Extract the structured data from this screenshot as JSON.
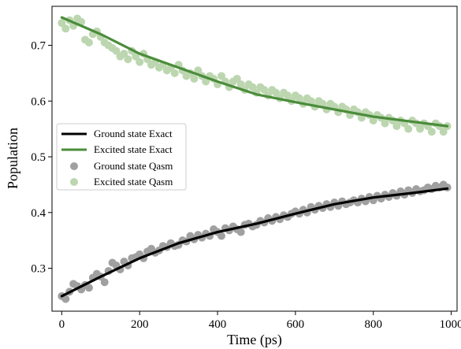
{
  "chart_data": {
    "type": "line",
    "xlabel": "Time (ps)",
    "ylabel": "Population",
    "xlim": [
      -25,
      1015
    ],
    "ylim": [
      0.223,
      0.77
    ],
    "xticks": [
      0,
      200,
      400,
      600,
      800,
      1000
    ],
    "yticks": [
      0.3,
      0.4,
      0.5,
      0.6,
      0.7
    ],
    "legend_position": "center-left",
    "colors": {
      "ground_exact": "#000000",
      "excited_exact": "#4a8c3a",
      "ground_qasm": "#a0a0a0",
      "excited_qasm": "#bcd6b0"
    },
    "series": [
      {
        "name": "Ground state Exact",
        "kind": "line",
        "x": [
          0,
          100,
          200,
          300,
          400,
          500,
          600,
          700,
          800,
          900,
          990
        ],
        "y": [
          0.25,
          0.285,
          0.318,
          0.345,
          0.365,
          0.38,
          0.398,
          0.415,
          0.427,
          0.435,
          0.443
        ]
      },
      {
        "name": "Excited state Exact",
        "kind": "line",
        "x": [
          0,
          100,
          200,
          300,
          400,
          500,
          600,
          700,
          800,
          900,
          990
        ],
        "y": [
          0.75,
          0.72,
          0.685,
          0.66,
          0.635,
          0.612,
          0.598,
          0.585,
          0.572,
          0.563,
          0.555
        ]
      },
      {
        "name": "Ground state Qasm",
        "kind": "scatter",
        "x": [
          0,
          10,
          20,
          30,
          40,
          50,
          60,
          70,
          80,
          90,
          100,
          110,
          120,
          130,
          140,
          150,
          160,
          170,
          180,
          190,
          200,
          210,
          220,
          230,
          240,
          250,
          260,
          270,
          280,
          290,
          300,
          310,
          320,
          330,
          340,
          350,
          360,
          370,
          380,
          390,
          400,
          410,
          420,
          430,
          440,
          450,
          460,
          470,
          480,
          490,
          500,
          510,
          520,
          530,
          540,
          550,
          560,
          570,
          580,
          590,
          600,
          610,
          620,
          630,
          640,
          650,
          660,
          670,
          680,
          690,
          700,
          710,
          720,
          730,
          740,
          750,
          760,
          770,
          780,
          790,
          800,
          810,
          820,
          830,
          840,
          850,
          860,
          870,
          880,
          890,
          900,
          910,
          920,
          930,
          940,
          950,
          960,
          970,
          980,
          990
        ],
        "y": [
          0.25,
          0.245,
          0.258,
          0.272,
          0.268,
          0.262,
          0.27,
          0.265,
          0.283,
          0.29,
          0.285,
          0.275,
          0.295,
          0.31,
          0.305,
          0.298,
          0.312,
          0.305,
          0.318,
          0.32,
          0.325,
          0.318,
          0.33,
          0.335,
          0.328,
          0.332,
          0.34,
          0.338,
          0.345,
          0.34,
          0.342,
          0.35,
          0.348,
          0.358,
          0.352,
          0.36,
          0.355,
          0.362,
          0.358,
          0.37,
          0.365,
          0.358,
          0.372,
          0.368,
          0.375,
          0.37,
          0.365,
          0.378,
          0.38,
          0.375,
          0.378,
          0.385,
          0.382,
          0.39,
          0.385,
          0.392,
          0.388,
          0.395,
          0.392,
          0.398,
          0.402,
          0.398,
          0.405,
          0.4,
          0.41,
          0.405,
          0.412,
          0.408,
          0.415,
          0.41,
          0.418,
          0.412,
          0.42,
          0.415,
          0.418,
          0.422,
          0.418,
          0.425,
          0.42,
          0.428,
          0.422,
          0.43,
          0.425,
          0.432,
          0.428,
          0.435,
          0.43,
          0.438,
          0.432,
          0.44,
          0.435,
          0.442,
          0.438,
          0.44,
          0.445,
          0.442,
          0.448,
          0.445,
          0.45,
          0.445
        ]
      },
      {
        "name": "Excited state Qasm",
        "kind": "scatter",
        "x": [
          0,
          10,
          20,
          30,
          40,
          50,
          60,
          70,
          80,
          90,
          100,
          110,
          120,
          130,
          140,
          150,
          160,
          170,
          180,
          190,
          200,
          210,
          220,
          230,
          240,
          250,
          260,
          270,
          280,
          290,
          300,
          310,
          320,
          330,
          340,
          350,
          360,
          370,
          380,
          390,
          400,
          410,
          420,
          430,
          440,
          450,
          460,
          470,
          480,
          490,
          500,
          510,
          520,
          530,
          540,
          550,
          560,
          570,
          580,
          590,
          600,
          610,
          620,
          630,
          640,
          650,
          660,
          670,
          680,
          690,
          700,
          710,
          720,
          730,
          740,
          750,
          760,
          770,
          780,
          790,
          800,
          810,
          820,
          830,
          840,
          850,
          860,
          870,
          880,
          890,
          900,
          910,
          920,
          930,
          940,
          950,
          960,
          970,
          980,
          990
        ],
        "y": [
          0.74,
          0.73,
          0.745,
          0.735,
          0.748,
          0.742,
          0.71,
          0.705,
          0.72,
          0.725,
          0.715,
          0.705,
          0.7,
          0.695,
          0.69,
          0.68,
          0.685,
          0.675,
          0.69,
          0.68,
          0.67,
          0.685,
          0.675,
          0.665,
          0.67,
          0.66,
          0.665,
          0.655,
          0.66,
          0.65,
          0.665,
          0.655,
          0.645,
          0.65,
          0.64,
          0.655,
          0.645,
          0.635,
          0.645,
          0.64,
          0.63,
          0.645,
          0.635,
          0.625,
          0.635,
          0.64,
          0.63,
          0.62,
          0.63,
          0.625,
          0.615,
          0.625,
          0.62,
          0.61,
          0.62,
          0.615,
          0.605,
          0.615,
          0.61,
          0.6,
          0.61,
          0.605,
          0.595,
          0.605,
          0.6,
          0.59,
          0.6,
          0.595,
          0.585,
          0.595,
          0.59,
          0.58,
          0.59,
          0.585,
          0.575,
          0.585,
          0.58,
          0.57,
          0.58,
          0.575,
          0.565,
          0.575,
          0.57,
          0.56,
          0.57,
          0.565,
          0.555,
          0.565,
          0.56,
          0.55,
          0.565,
          0.56,
          0.55,
          0.56,
          0.555,
          0.545,
          0.56,
          0.555,
          0.545,
          0.555
        ]
      }
    ]
  }
}
